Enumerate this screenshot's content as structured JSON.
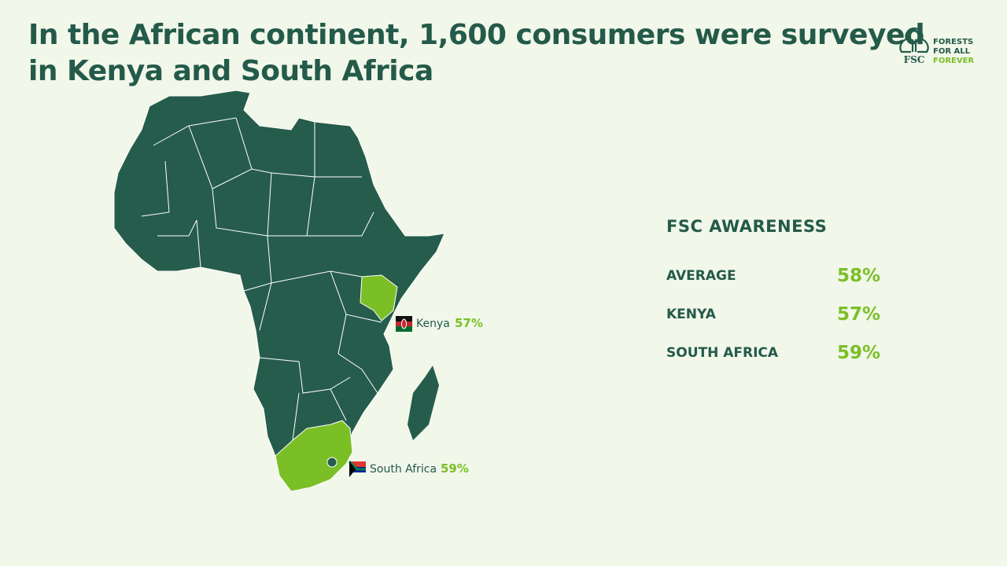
{
  "header": {
    "title_line1": "In the African continent, 1,600 consumers were surveyed",
    "title_line2": "in Kenya and South Africa"
  },
  "logo": {
    "brand": "FSC",
    "tagline": [
      "FORESTS",
      "FOR ALL",
      "FOREVER"
    ]
  },
  "map": {
    "labels": [
      {
        "name": "Kenya",
        "value": "57%"
      },
      {
        "name": "South Africa",
        "value": "59%"
      }
    ]
  },
  "awareness": {
    "heading": "FSC AWARENESS",
    "rows": [
      [
        "AVERAGE",
        "58%"
      ],
      [
        "KENYA",
        "57%"
      ],
      [
        "SOUTH AFRICA",
        "59%"
      ]
    ]
  }
}
